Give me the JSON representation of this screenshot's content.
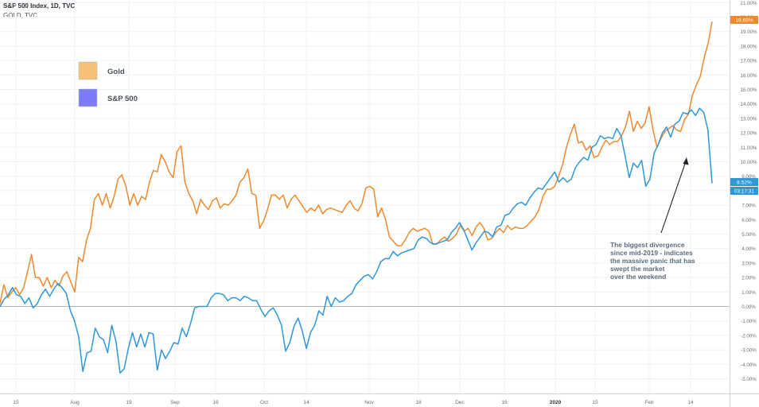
{
  "header": {
    "symbol_line": "S&P 500 Index, 1D, TVC",
    "compare_line": "GOLD, TVC"
  },
  "badges": {
    "gold_value": "19.69%",
    "spx_value": "8.52%",
    "countdown": "03:17:31"
  },
  "colors": {
    "gold": "#f0882c",
    "spx": "#2d97d8",
    "legend_gold_fill": "#f5c07a",
    "legend_spx_fill": "#7b7cf5",
    "zero_line": "#b2b5be",
    "grid": "#eef0f4",
    "axis_text": "#6a6d78"
  },
  "legend": [
    {
      "label": "Gold",
      "color_key": "legend_gold_fill"
    },
    {
      "label": "S&P 500",
      "color_key": "legend_spx_fill"
    }
  ],
  "annotation": {
    "lines": [
      "The biggest divergence",
      "since mid-2019 - indicates",
      "the massive panic that has",
      "swept the market",
      "over the weekend"
    ]
  },
  "chart_data": {
    "type": "line",
    "x_tick_labels": [
      "15",
      "Aug",
      "19",
      "Sep",
      "16",
      "Oct",
      "14",
      "Nov",
      "18",
      "Dec",
      "16",
      "2020",
      "15",
      "Feb",
      "14"
    ],
    "y_tick_labels": [
      "-5.00%",
      "-4.00%",
      "-3.00%",
      "-2.00%",
      "-1.00%",
      "0.00%",
      "1.00%",
      "2.00%",
      "3.00%",
      "4.00%",
      "5.00%",
      "6.00%",
      "7.00%",
      "8.00%",
      "9.00%",
      "10.00%",
      "11.00%",
      "12.00%",
      "13.00%",
      "14.00%",
      "15.00%",
      "16.00%",
      "17.00%",
      "18.00%",
      "19.00%",
      "20.00%",
      "21.00%"
    ],
    "ylim": [
      -5,
      21
    ],
    "grid": true,
    "series": [
      {
        "name": "Gold",
        "color_key": "gold",
        "values": [
          0.2,
          1.5,
          0.6,
          1.0,
          1.3,
          0.8,
          1.3,
          2.4,
          3.6,
          2.0,
          2.0,
          1.4,
          2.0,
          1.3,
          1.8,
          1.4,
          2.1,
          2.4,
          1.7,
          1.0,
          3.4,
          3.1,
          4.6,
          5.4,
          7.4,
          7.8,
          7.0,
          7.8,
          6.8,
          7.6,
          8.8,
          9.1,
          8.3,
          7.0,
          7.8,
          7.0,
          7.6,
          7.4,
          8.6,
          9.4,
          9.3,
          10.5,
          10.0,
          9.3,
          8.9,
          10.7,
          11.1,
          8.6,
          7.8,
          7.3,
          6.4,
          7.4,
          7.0,
          6.7,
          7.3,
          7.5,
          6.8,
          7.1,
          7.0,
          7.3,
          7.7,
          8.6,
          8.9,
          9.5,
          7.8,
          7.7,
          5.4,
          5.9,
          6.7,
          7.7,
          7.7,
          7.4,
          7.7,
          6.8,
          7.4,
          7.7,
          7.3,
          6.9,
          6.5,
          6.8,
          6.6,
          7.0,
          6.4,
          6.7,
          6.8,
          6.7,
          6.6,
          6.5,
          7.0,
          7.3,
          6.8,
          6.6,
          7.1,
          8.2,
          8.3,
          8.1,
          6.2,
          6.8,
          6.0,
          4.8,
          4.5,
          4.2,
          4.2,
          4.6,
          5.1,
          5.4,
          5.2,
          5.3,
          5.4,
          5.2,
          4.3,
          4.3,
          4.6,
          4.8,
          4.5,
          4.7,
          5.0,
          5.6,
          5.2,
          5.4,
          4.9,
          5.5,
          5.8,
          5.4,
          4.6,
          4.7,
          5.1,
          5.4,
          5.1,
          5.6,
          5.3,
          5.5,
          5.4,
          5.4,
          5.6,
          5.9,
          6.2,
          6.7,
          7.6,
          8.1,
          8.1,
          8.3,
          9.0,
          9.8,
          11.0,
          11.9,
          12.6,
          11.3,
          11.4,
          10.8,
          11.1,
          10.3,
          10.4,
          11.0,
          11.5,
          11.2,
          11.4,
          11.4,
          11.8,
          12.4,
          13.5,
          12.1,
          12.8,
          12.3,
          12.7,
          13.8,
          12.2,
          11.0,
          11.6,
          12.1,
          12.3,
          12.5,
          12.2,
          12.1,
          12.9,
          13.3,
          14.6,
          15.3,
          15.9,
          17.2,
          18.2,
          19.69
        ]
      },
      {
        "name": "S&P 500",
        "color_key": "spx",
        "values": [
          0.0,
          0.5,
          0.8,
          1.3,
          0.8,
          0.7,
          0.2,
          0.6,
          -0.1,
          0.2,
          0.8,
          1.2,
          0.7,
          1.2,
          1.6,
          1.3,
          0.9,
          -0.3,
          -1.0,
          -2.1,
          -4.5,
          -3.2,
          -3.1,
          -1.5,
          -2.1,
          -2.3,
          -3.2,
          -1.3,
          -2.4,
          -4.6,
          -4.3,
          -2.9,
          -1.8,
          -2.8,
          -1.9,
          -2.8,
          -1.8,
          -1.9,
          -4.4,
          -3.0,
          -3.6,
          -3.1,
          -2.5,
          -2.6,
          -1.5,
          -2.1,
          -1.2,
          -0.1,
          0.0,
          0.0,
          0.0,
          0.6,
          0.9,
          0.9,
          0.8,
          0.4,
          0.6,
          0.6,
          0.4,
          0.7,
          0.6,
          0.4,
          0.4,
          -0.2,
          -0.7,
          -0.3,
          -0.1,
          -0.6,
          -1.3,
          -3.1,
          -2.5,
          -1.4,
          -0.8,
          -1.7,
          -2.9,
          -1.8,
          -1.3,
          -0.3,
          -0.6,
          0.7,
          0.0,
          0.6,
          0.3,
          0.4,
          0.7,
          0.9,
          1.5,
          1.8,
          2.1,
          2.2,
          1.9,
          2.4,
          3.1,
          3.3,
          3.3,
          3.8,
          3.5,
          3.7,
          3.8,
          3.9,
          4.0,
          4.6,
          4.8,
          4.7,
          4.4,
          4.3,
          4.4,
          4.5,
          4.6,
          5.1,
          5.4,
          5.8,
          5.3,
          4.6,
          3.9,
          4.4,
          4.8,
          5.2,
          5.1,
          4.8,
          5.5,
          5.6,
          6.3,
          6.4,
          6.8,
          7.1,
          7.2,
          7.0,
          7.5,
          7.9,
          8.2,
          8.1,
          8.5,
          8.9,
          9.3,
          8.6,
          8.9,
          8.6,
          8.8,
          9.6,
          10.0,
          10.3,
          10.1,
          11.0,
          11.2,
          11.8,
          11.6,
          11.7,
          11.6,
          12.3,
          11.8,
          10.4,
          8.9,
          9.9,
          9.6,
          10.1,
          8.3,
          8.8,
          10.6,
          11.2,
          12.0,
          12.4,
          11.7,
          12.6,
          12.8,
          13.4,
          13.3,
          13.6,
          13.2,
          13.7,
          13.4,
          12.2,
          8.52
        ]
      }
    ]
  }
}
